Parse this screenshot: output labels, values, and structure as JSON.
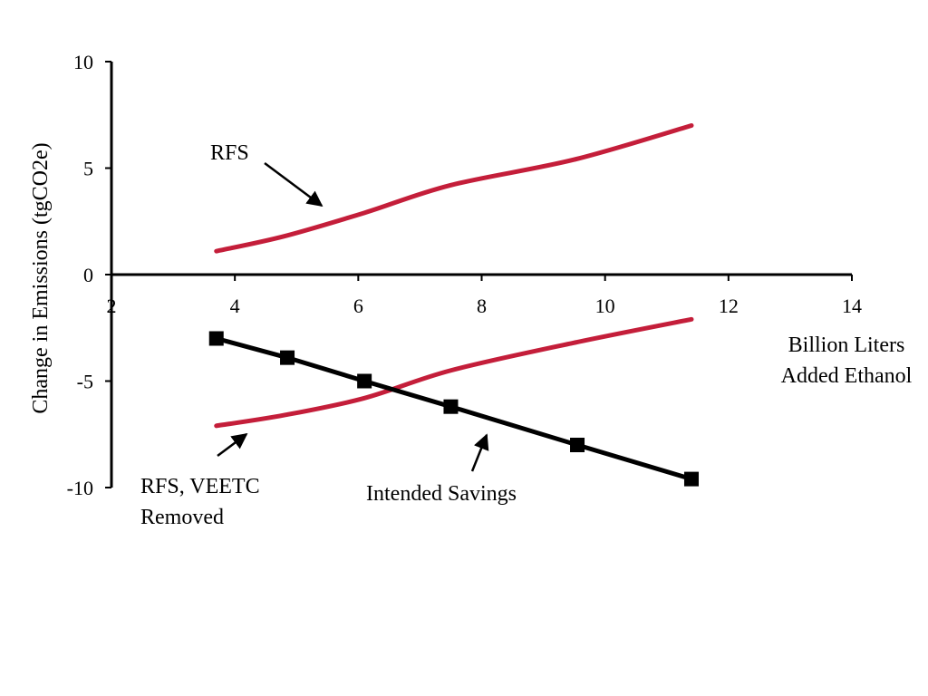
{
  "chart_data": {
    "type": "line",
    "xlabel": [
      "Billion Liters",
      "Added Ethanol"
    ],
    "ylabel": "Change in Emissions (tgCO2e)",
    "xlim": [
      2,
      14
    ],
    "ylim": [
      -10,
      10
    ],
    "x_ticks": [
      "2",
      "4",
      "6",
      "8",
      "10",
      "12",
      "14"
    ],
    "y_ticks": [
      "10",
      "5",
      "0",
      "-5",
      "-10"
    ],
    "grid": false,
    "series": [
      {
        "name": "RFS",
        "label_lines": [
          "RFS"
        ],
        "color": "#c41e3a",
        "markers": false,
        "x": [
          3.7,
          4.8,
          6.1,
          7.5,
          9.5,
          11.4
        ],
        "y": [
          1.1,
          1.8,
          2.9,
          4.2,
          5.4,
          7.0
        ]
      },
      {
        "name": "RFS, VEETC Removed",
        "label_lines": [
          "RFS, VEETC",
          "Removed"
        ],
        "color": "#c41e3a",
        "markers": false,
        "x": [
          3.7,
          4.8,
          6.1,
          7.5,
          9.5,
          11.4
        ],
        "y": [
          -7.1,
          -6.6,
          -5.8,
          -4.5,
          -3.2,
          -2.1
        ]
      },
      {
        "name": "Intended Savings",
        "label_lines": [
          "Intended Savings"
        ],
        "color": "#000000",
        "markers": true,
        "x": [
          3.7,
          4.85,
          6.1,
          7.5,
          9.55,
          11.4
        ],
        "y": [
          -3.0,
          -3.9,
          -5.0,
          -6.2,
          -8.0,
          -9.6
        ]
      }
    ]
  }
}
